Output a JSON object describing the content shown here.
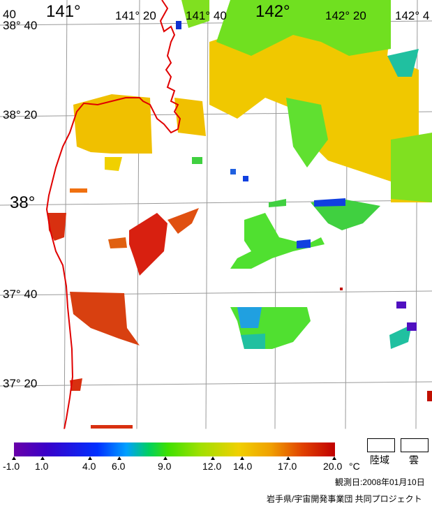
{
  "map": {
    "lon_labels": [
      "141°",
      "141° 20",
      "141° 40",
      "142°",
      "142° 20",
      "142° 4"
    ],
    "lat_labels": [
      "38° 40",
      "38° 20",
      "38°",
      "37° 40",
      "37° 20"
    ],
    "corner_label": "40"
  },
  "legend": {
    "ticks": [
      "-1.0",
      "1.0",
      "4.0",
      "6.0",
      "9.0",
      "12.0",
      "14.0",
      "17.0",
      "20.0"
    ],
    "unit": "°C",
    "land_label": "陸域",
    "cloud_label": "雲"
  },
  "info": {
    "date": "観測日:2008年01月10日",
    "credit": "岩手県/宇宙開発事業団 共同プロジェクト"
  },
  "colors": {
    "coast": "#e00000",
    "grid": "#999999",
    "warm": "#d83010",
    "yellow": "#f0c800",
    "green": "#50e030",
    "blue": "#1040e0"
  }
}
